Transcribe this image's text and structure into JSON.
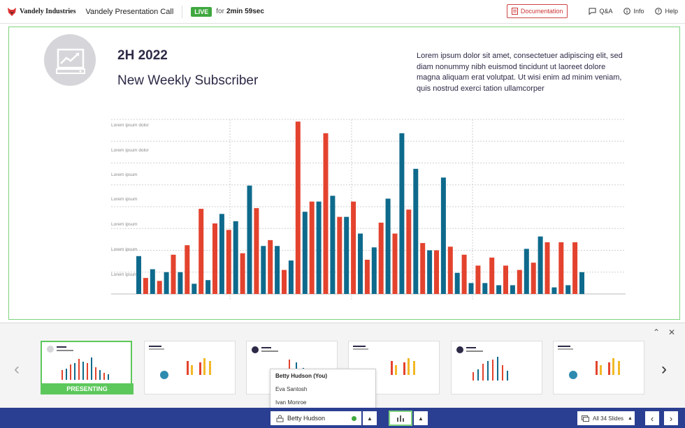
{
  "header": {
    "logo_text": "Vandely Industries",
    "app_title": "Vandely Presentation Call",
    "live_label": "LIVE",
    "timer_prefix": "for",
    "timer_value": "2min 59sec",
    "documentation_label": "Documentation",
    "qa_label": "Q&A",
    "info_label": "Info",
    "help_label": "Help"
  },
  "slide": {
    "year": "2H 2022",
    "subtitle": "New Weekly Subscriber",
    "body": "Lorem ipsum dolor sit amet, consectetuer adipiscing elit, sed diam nonummy nibh euismod tincidunt ut laoreet dolore magna aliquam erat volutpat. Ut wisi enim ad minim veniam, quis nostrud exerci tation ullamcorper"
  },
  "chart_data": {
    "type": "bar",
    "y_labels": [
      "Lorem ipsum dolor",
      "Lorem ipsum dolor",
      "Lorem ipsum",
      "Lorem ipsum",
      "Lorem ipsum",
      "Lorem ipsum",
      "Lorem ipsum"
    ],
    "ylim": [
      0,
      240
    ],
    "series_colors": {
      "blue": "#0e6a8c",
      "red": "#e3432e"
    },
    "bars": [
      {
        "c": "blue",
        "v": 52
      },
      {
        "c": "red",
        "v": 22
      },
      {
        "c": "blue",
        "v": 34
      },
      {
        "c": "red",
        "v": 18
      },
      {
        "c": "blue",
        "v": 30
      },
      {
        "c": "red",
        "v": 54
      },
      {
        "c": "blue",
        "v": 30
      },
      {
        "c": "red",
        "v": 67
      },
      {
        "c": "blue",
        "v": 14
      },
      {
        "c": "red",
        "v": 117
      },
      {
        "c": "blue",
        "v": 19
      },
      {
        "c": "red",
        "v": 97
      },
      {
        "c": "blue",
        "v": 110
      },
      {
        "c": "red",
        "v": 88
      },
      {
        "c": "blue",
        "v": 100
      },
      {
        "c": "red",
        "v": 56
      },
      {
        "c": "blue",
        "v": 149
      },
      {
        "c": "red",
        "v": 118
      },
      {
        "c": "blue",
        "v": 66
      },
      {
        "c": "red",
        "v": 74
      },
      {
        "c": "blue",
        "v": 66
      },
      {
        "c": "red",
        "v": 33
      },
      {
        "c": "blue",
        "v": 46
      },
      {
        "c": "red",
        "v": 237
      },
      {
        "c": "blue",
        "v": 113
      },
      {
        "c": "red",
        "v": 127
      },
      {
        "c": "blue",
        "v": 127
      },
      {
        "c": "red",
        "v": 221
      },
      {
        "c": "blue",
        "v": 135
      },
      {
        "c": "red",
        "v": 106
      },
      {
        "c": "blue",
        "v": 106
      },
      {
        "c": "red",
        "v": 127
      },
      {
        "c": "blue",
        "v": 83
      },
      {
        "c": "red",
        "v": 47
      },
      {
        "c": "blue",
        "v": 64
      },
      {
        "c": "red",
        "v": 98
      },
      {
        "c": "blue",
        "v": 131
      },
      {
        "c": "red",
        "v": 83
      },
      {
        "c": "blue",
        "v": 221
      },
      {
        "c": "red",
        "v": 116
      },
      {
        "c": "blue",
        "v": 172
      },
      {
        "c": "red",
        "v": 70
      },
      {
        "c": "blue",
        "v": 60
      },
      {
        "c": "red",
        "v": 60
      },
      {
        "c": "blue",
        "v": 160
      },
      {
        "c": "red",
        "v": 65
      },
      {
        "c": "blue",
        "v": 29
      },
      {
        "c": "red",
        "v": 54
      },
      {
        "c": "blue",
        "v": 15
      },
      {
        "c": "red",
        "v": 39
      },
      {
        "c": "blue",
        "v": 15
      },
      {
        "c": "red",
        "v": 50
      },
      {
        "c": "blue",
        "v": 12
      },
      {
        "c": "red",
        "v": 39
      },
      {
        "c": "blue",
        "v": 12
      },
      {
        "c": "red",
        "v": 33
      },
      {
        "c": "blue",
        "v": 62
      },
      {
        "c": "red",
        "v": 43
      },
      {
        "c": "blue",
        "v": 79
      },
      {
        "c": "red",
        "v": 71
      },
      {
        "c": "blue",
        "v": 9
      },
      {
        "c": "red",
        "v": 71
      },
      {
        "c": "blue",
        "v": 12
      },
      {
        "c": "red",
        "v": 71
      },
      {
        "c": "blue",
        "v": 30
      }
    ]
  },
  "strip": {
    "presenting_label": "PRESENTING",
    "collapse_icon": "chevron-up-icon",
    "close_icon": "close-icon"
  },
  "presenter_menu": {
    "items": [
      "Betty Hudson (You)",
      "Eva Santosh",
      "Ivan Monroe"
    ]
  },
  "bottom": {
    "selected_presenter": "Betty Hudson",
    "slides_label": "All 34 Slides"
  }
}
